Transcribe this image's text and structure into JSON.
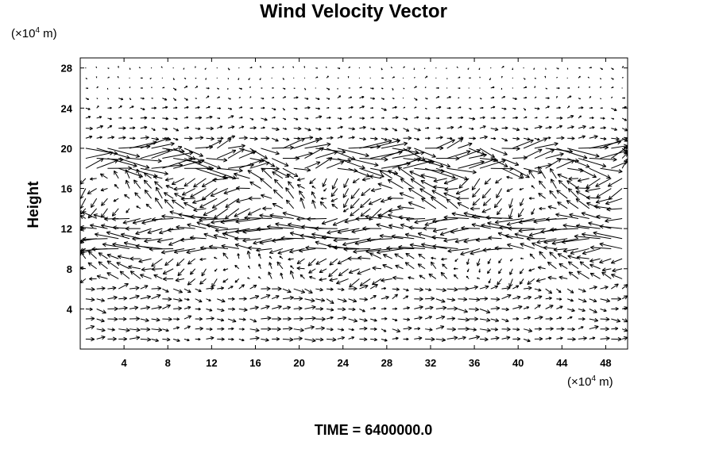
{
  "chart_data": {
    "type": "vector_field",
    "title": "Wind Velocity Vector",
    "ylabel": "Height",
    "x_unit": {
      "prefix": "(×10",
      "exp": "4",
      "suffix": " m)"
    },
    "y_unit": {
      "prefix": "(×10",
      "exp": "4",
      "suffix": " m)"
    },
    "xlim": [
      0,
      50
    ],
    "ylim": [
      0,
      29
    ],
    "xticks": [
      "4",
      "8",
      "12",
      "16",
      "20",
      "24",
      "28",
      "32",
      "36",
      "40",
      "44",
      "48"
    ],
    "yticks": [
      "4",
      "8",
      "12",
      "16",
      "20",
      "24",
      "28"
    ],
    "grid": false,
    "time_label": "TIME = 6400000.0"
  }
}
